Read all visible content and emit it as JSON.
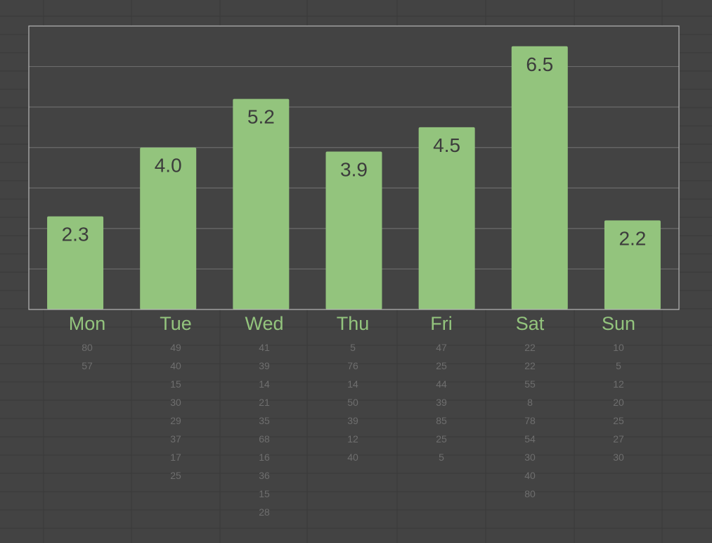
{
  "chart_data": {
    "type": "bar",
    "categories": [
      "Mon",
      "Tue",
      "Wed",
      "Thu",
      "Fri",
      "Sat",
      "Sun"
    ],
    "values": [
      2.3,
      4.0,
      5.2,
      3.9,
      4.5,
      6.5,
      2.2
    ],
    "data_labels": [
      "2.3",
      "4.0",
      "5.2",
      "3.9",
      "4.5",
      "6.5",
      "2.2"
    ],
    "ylim": [
      0,
      7
    ],
    "grid": true,
    "bar_color": "#93c47d",
    "label_color": "#3c3c3c",
    "background_color": "#434343",
    "gridline_color": "#6b6b6b",
    "border_color": "#b7b7b7"
  },
  "sheet": {
    "columns": [
      {
        "day": "Mon",
        "values": [
          "80",
          "57"
        ]
      },
      {
        "day": "Tue",
        "values": [
          "49",
          "40",
          "15",
          "30",
          "29",
          "37",
          "17",
          "25"
        ]
      },
      {
        "day": "Wed",
        "values": [
          "41",
          "39",
          "14",
          "21",
          "35",
          "68",
          "16",
          "36",
          "15",
          "28"
        ]
      },
      {
        "day": "Thu",
        "values": [
          "5",
          "76",
          "14",
          "50",
          "39",
          "12",
          "40"
        ]
      },
      {
        "day": "Fri",
        "values": [
          "47",
          "25",
          "44",
          "39",
          "85",
          "25",
          "5"
        ]
      },
      {
        "day": "Sat",
        "values": [
          "22",
          "22",
          "55",
          "8",
          "78",
          "54",
          "30",
          "40",
          "80"
        ]
      },
      {
        "day": "Sun",
        "values": [
          "10",
          "5",
          "12",
          "20",
          "25",
          "27",
          "30"
        ]
      }
    ],
    "cell_text_color": "#6e6e6e",
    "gridline_color": "#3a3a3a"
  }
}
